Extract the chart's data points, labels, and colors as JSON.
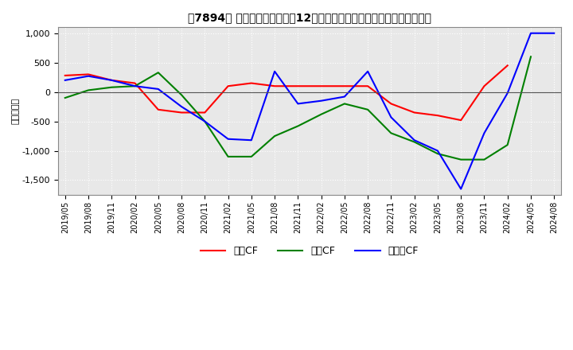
{
  "title": "　7894、 キャッシュフローの12か月移動合計の対前年同期増減額の推移",
  "title_text": "【7894】 キャッシュフローの12か月移動合計の対前年同期増減額の推移",
  "ylabel": "（百万円）",
  "ylim": [
    -1750,
    1100
  ],
  "yticks": [
    -1500,
    -1000,
    -500,
    0,
    500,
    1000
  ],
  "background_color": "#ffffff",
  "plot_background_color": "#e8e8e8",
  "grid_color": "#ffffff",
  "dates": [
    "2019/05",
    "2019/08",
    "2019/11",
    "2020/02",
    "2020/05",
    "2020/08",
    "2020/11",
    "2021/02",
    "2021/05",
    "2021/08",
    "2021/11",
    "2022/02",
    "2022/05",
    "2022/08",
    "2022/11",
    "2023/02",
    "2023/05",
    "2023/08",
    "2023/11",
    "2024/02",
    "2024/05",
    "2024/08"
  ],
  "eigyo_cf": [
    280,
    300,
    200,
    150,
    -300,
    -350,
    -350,
    100,
    150,
    100,
    100,
    100,
    100,
    100,
    -200,
    -350,
    -400,
    -480,
    100,
    450,
    null,
    null
  ],
  "toshi_cf": [
    -100,
    30,
    80,
    100,
    330,
    -50,
    -500,
    -1100,
    -1100,
    -750,
    -580,
    -380,
    -200,
    -300,
    -700,
    -850,
    -1050,
    -1150,
    -1150,
    -900,
    600,
    null
  ],
  "free_cf": [
    200,
    270,
    200,
    100,
    50,
    -250,
    -500,
    -800,
    -820,
    350,
    -200,
    -150,
    -80,
    350,
    -430,
    -820,
    -1000,
    -1650,
    -700,
    -20,
    1000,
    1000
  ],
  "eigyo_color": "#ff0000",
  "toshi_color": "#008000",
  "free_color": "#0000ff",
  "legend_labels": [
    "営業CF",
    "投資CF",
    "フリーCF"
  ]
}
